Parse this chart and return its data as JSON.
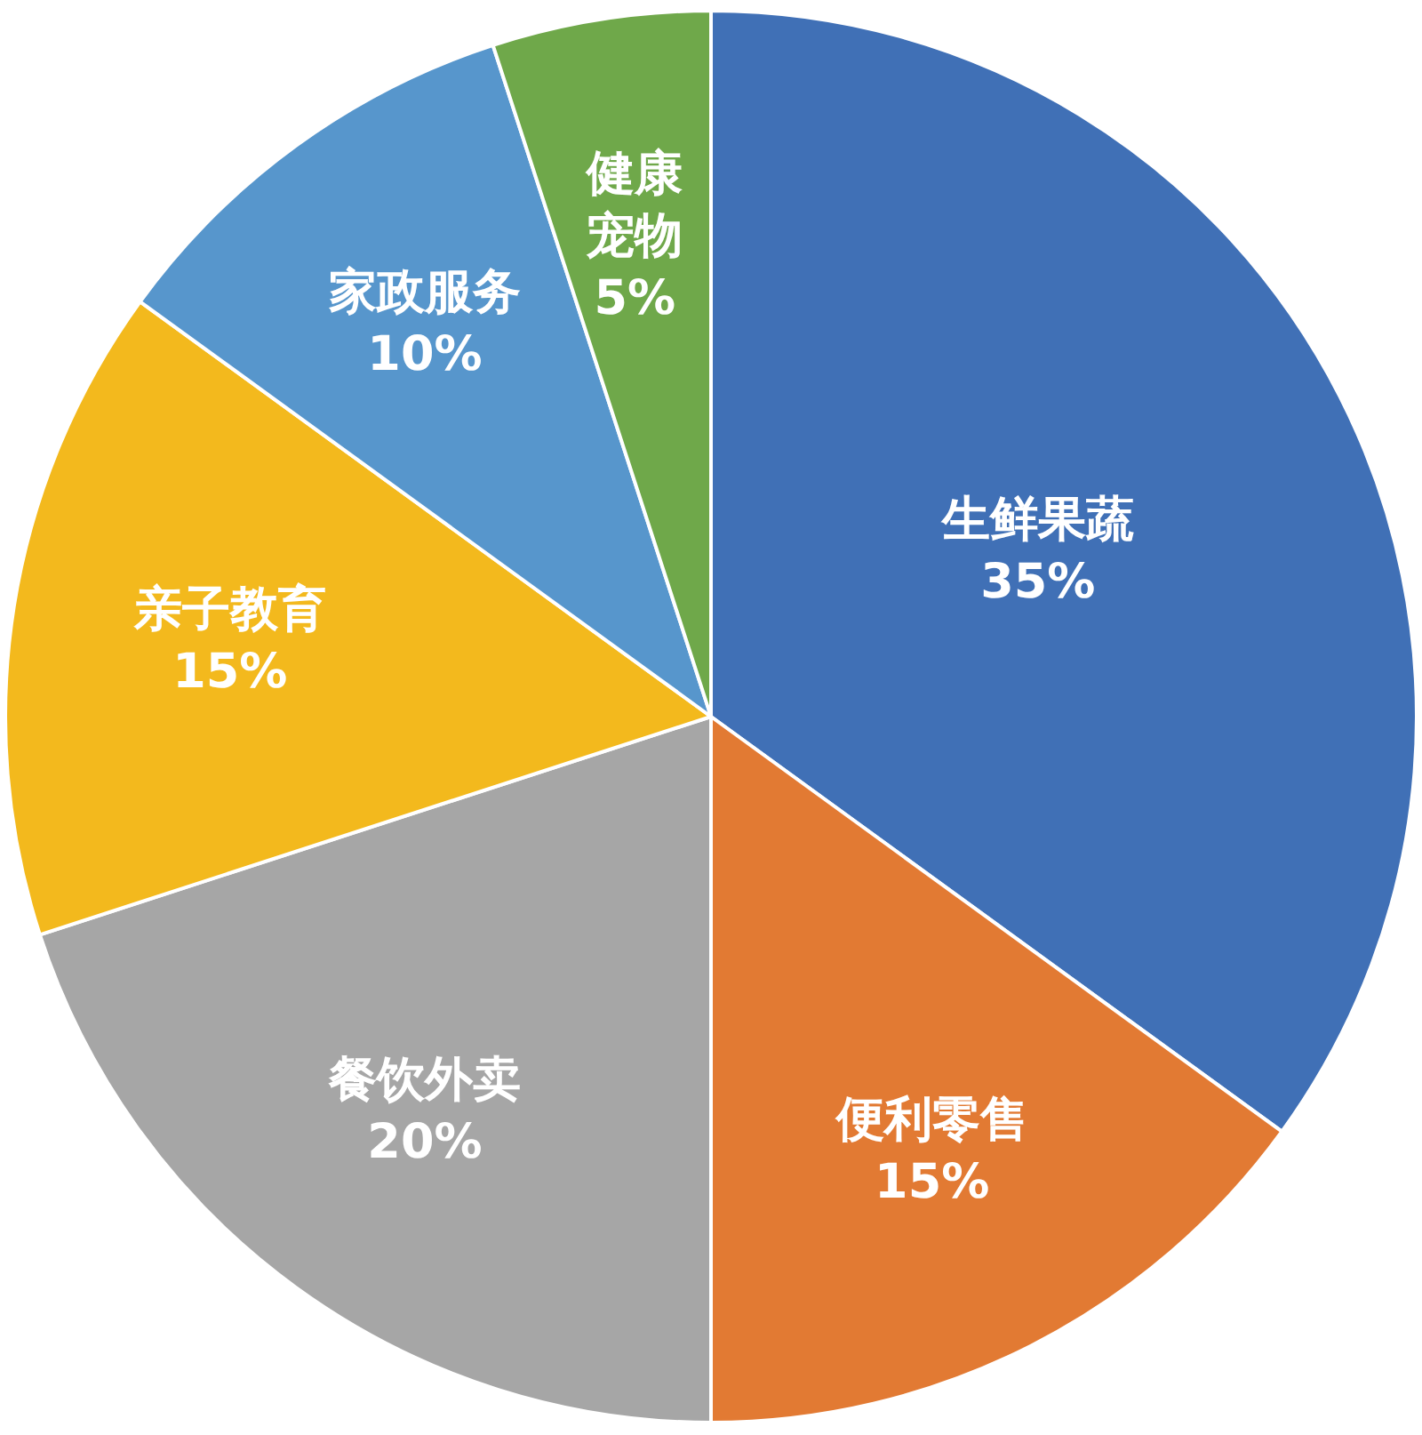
{
  "chart_data": {
    "type": "pie",
    "categories": [
      "生鲜果蔬",
      "便利零售",
      "餐饮外卖",
      "亲子教育",
      "家政服务",
      "健康宠物"
    ],
    "values": [
      35,
      15,
      20,
      15,
      10,
      5
    ],
    "colors": [
      "#4070b6",
      "#e27a33",
      "#a6a6a6",
      "#f3b91d",
      "#5796cc",
      "#6fa84a"
    ],
    "value_labels": [
      "35%",
      "15%",
      "20%",
      "15%",
      "10%",
      "5%"
    ]
  }
}
